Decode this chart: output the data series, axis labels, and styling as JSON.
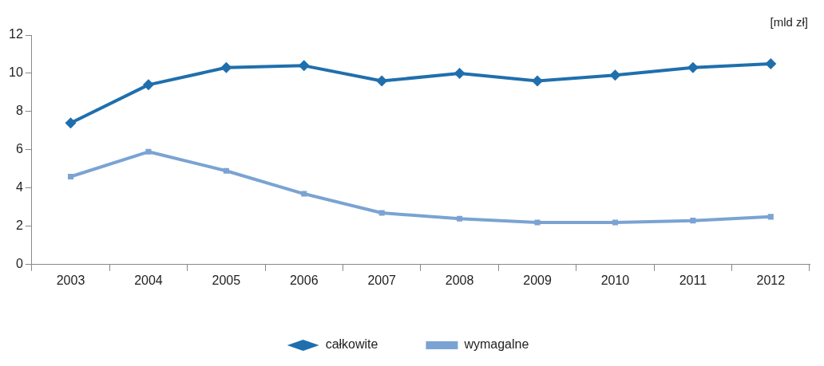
{
  "chart_data": {
    "type": "line",
    "ylabel": "[mld zł]",
    "categories": [
      "2003",
      "2004",
      "2005",
      "2006",
      "2007",
      "2008",
      "2009",
      "2010",
      "2011",
      "2012"
    ],
    "series": [
      {
        "name": "całkowite",
        "color": "#1f6fad",
        "marker": "diamond",
        "values": [
          7.4,
          9.4,
          10.3,
          10.4,
          9.6,
          10.0,
          9.6,
          9.9,
          10.3,
          10.5
        ]
      },
      {
        "name": "wymagalne",
        "color": "#7aa3d3",
        "marker": "square",
        "values": [
          4.6,
          5.9,
          4.9,
          3.7,
          2.7,
          2.4,
          2.2,
          2.2,
          2.3,
          2.5
        ]
      }
    ],
    "ylim": [
      0,
      12
    ],
    "yticks": [
      0,
      2,
      4,
      6,
      8,
      10,
      12
    ],
    "grid": false,
    "legend": "bottom",
    "line_style": "solid"
  }
}
